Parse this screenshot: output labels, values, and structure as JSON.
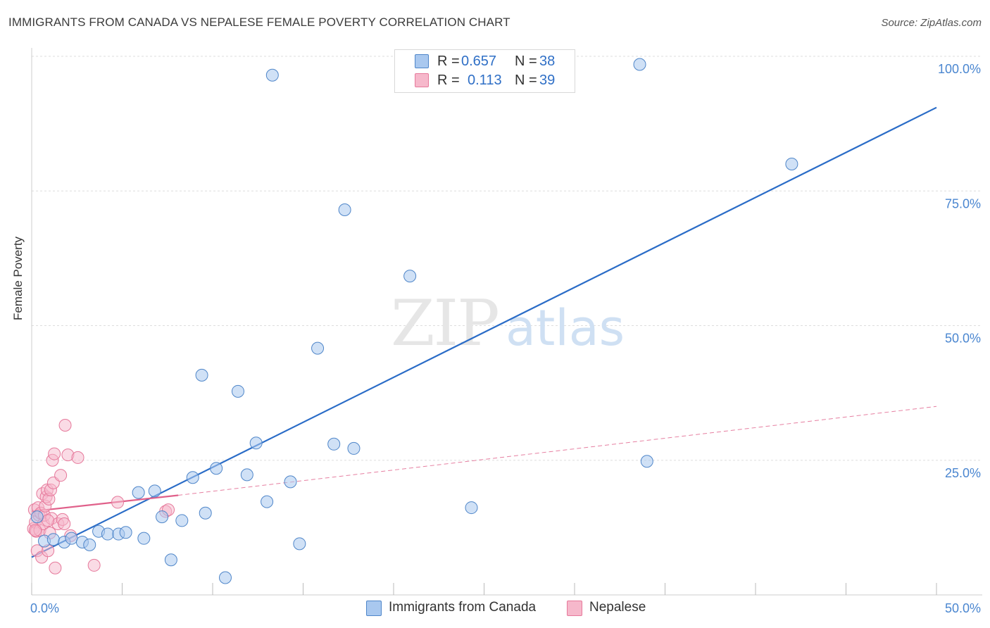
{
  "title": "IMMIGRANTS FROM CANADA VS NEPALESE FEMALE POVERTY CORRELATION CHART",
  "source": "Source: ZipAtlas.com",
  "watermark": {
    "zip": "ZIP",
    "atlas": "atlas"
  },
  "legend": {
    "series1": {
      "r_label": "R =",
      "r_value": "0.657",
      "n_label": "N =",
      "n_value": "38"
    },
    "series2": {
      "r_label": "R =",
      "r_value": "0.113",
      "n_label": "N =",
      "n_value": "39"
    }
  },
  "bottom_legend": {
    "series1": "Immigrants from Canada",
    "series2": "Nepalese"
  },
  "colors": {
    "series1_fill": "#a9c8ef",
    "series1_stroke": "#4f86c9",
    "series1_line": "#2a6cc7",
    "series2_fill": "#f6b8cb",
    "series2_stroke": "#e6799b",
    "series2_line": "#e0608a",
    "grid": "#dddddd",
    "tick_label": "#4a86d0"
  },
  "chart_data": {
    "type": "scatter",
    "title": "IMMIGRANTS FROM CANADA VS NEPALESE FEMALE POVERTY CORRELATION CHART",
    "xlabel": "",
    "ylabel": "Female Poverty",
    "xlim": [
      0,
      50
    ],
    "ylim": [
      0,
      100
    ],
    "x_tick_labels": [
      "0.0%",
      "50.0%"
    ],
    "y_ticks": [
      25,
      50,
      75,
      100
    ],
    "y_tick_labels": [
      "25.0%",
      "50.0%",
      "75.0%",
      "100.0%"
    ],
    "series": [
      {
        "name": "Immigrants from Canada",
        "R": 0.657,
        "N": 38,
        "points": [
          [
            0.3,
            14.5
          ],
          [
            0.7,
            10.0
          ],
          [
            1.2,
            10.3
          ],
          [
            1.8,
            9.8
          ],
          [
            2.2,
            10.5
          ],
          [
            2.8,
            9.8
          ],
          [
            3.2,
            9.3
          ],
          [
            3.7,
            11.8
          ],
          [
            4.2,
            11.3
          ],
          [
            4.8,
            11.3
          ],
          [
            5.2,
            11.6
          ],
          [
            5.9,
            19.0
          ],
          [
            6.2,
            10.5
          ],
          [
            6.8,
            19.3
          ],
          [
            7.2,
            14.5
          ],
          [
            7.7,
            6.5
          ],
          [
            8.3,
            13.8
          ],
          [
            8.9,
            21.8
          ],
          [
            9.4,
            40.8
          ],
          [
            9.6,
            15.2
          ],
          [
            10.2,
            23.5
          ],
          [
            10.7,
            3.2
          ],
          [
            11.4,
            37.8
          ],
          [
            11.9,
            22.3
          ],
          [
            12.4,
            28.2
          ],
          [
            13.0,
            17.3
          ],
          [
            13.3,
            96.5
          ],
          [
            14.3,
            21.0
          ],
          [
            14.8,
            9.5
          ],
          [
            15.8,
            45.8
          ],
          [
            16.7,
            28.0
          ],
          [
            17.3,
            71.5
          ],
          [
            17.8,
            27.2
          ],
          [
            20.9,
            59.2
          ],
          [
            24.3,
            16.2
          ],
          [
            33.6,
            98.5
          ],
          [
            34.0,
            24.8
          ],
          [
            42.0,
            80.0
          ]
        ],
        "trend": {
          "x": [
            0,
            50
          ],
          "y": [
            7.0,
            90.5
          ]
        }
      },
      {
        "name": "Nepalese",
        "R": 0.113,
        "N": 39,
        "points": [
          [
            0.1,
            12.3
          ],
          [
            0.15,
            15.8
          ],
          [
            0.2,
            13.5
          ],
          [
            0.25,
            11.8
          ],
          [
            0.3,
            8.2
          ],
          [
            0.35,
            16.2
          ],
          [
            0.4,
            14.8
          ],
          [
            0.45,
            12.0
          ],
          [
            0.5,
            15.2
          ],
          [
            0.55,
            7.0
          ],
          [
            0.6,
            18.8
          ],
          [
            0.65,
            13.2
          ],
          [
            0.7,
            14.8
          ],
          [
            0.75,
            16.5
          ],
          [
            0.8,
            18.2
          ],
          [
            0.85,
            19.5
          ],
          [
            0.9,
            8.2
          ],
          [
            0.95,
            17.8
          ],
          [
            1.0,
            11.5
          ],
          [
            1.05,
            19.5
          ],
          [
            1.1,
            14.2
          ],
          [
            1.15,
            25.0
          ],
          [
            1.2,
            20.8
          ],
          [
            1.25,
            26.2
          ],
          [
            1.3,
            5.0
          ],
          [
            1.45,
            13.2
          ],
          [
            1.6,
            22.2
          ],
          [
            1.7,
            14.0
          ],
          [
            1.8,
            13.2
          ],
          [
            1.85,
            31.5
          ],
          [
            2.0,
            26.0
          ],
          [
            2.15,
            11.0
          ],
          [
            2.55,
            25.5
          ],
          [
            3.45,
            5.5
          ],
          [
            4.75,
            17.2
          ],
          [
            7.4,
            15.5
          ],
          [
            7.55,
            15.8
          ],
          [
            0.2,
            12.0
          ],
          [
            0.9,
            13.8
          ]
        ],
        "trend_solid": {
          "x": [
            0,
            8.1
          ],
          "y": [
            15.5,
            18.5
          ]
        },
        "trend_dashed": {
          "x": [
            8.1,
            50
          ],
          "y": [
            18.5,
            35.0
          ]
        }
      }
    ]
  }
}
